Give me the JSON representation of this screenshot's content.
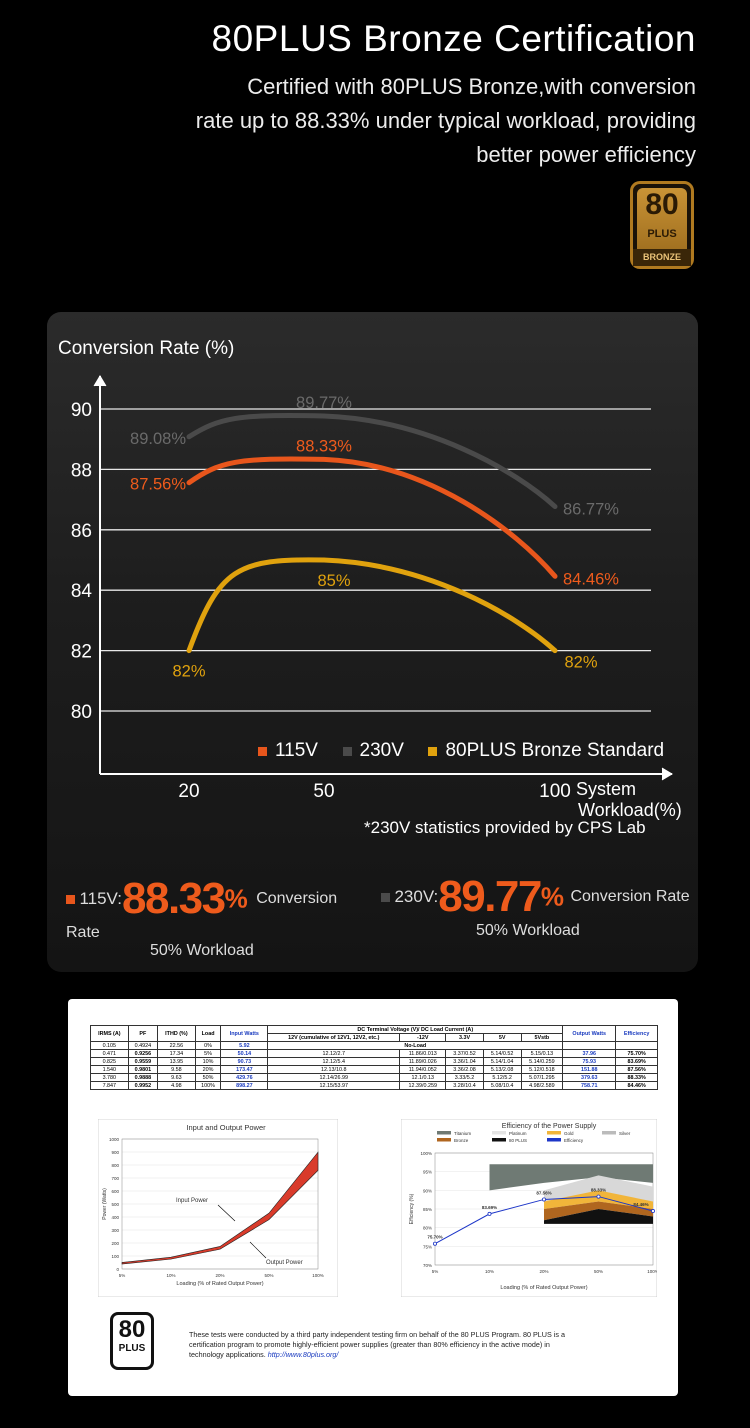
{
  "header": {
    "title": "80PLUS Bronze Certification",
    "subtitle_lines": [
      "Certified with 80PLUS Bronze,with conversion",
      "rate up to 88.33% under typical workload, providing",
      "better power efficiency"
    ],
    "badge": {
      "number": "80",
      "plus": "PLUS",
      "tier": "BRONZE"
    }
  },
  "chart_data": {
    "type": "line",
    "ylabel": "Conversion Rate (%)",
    "xlabel": "System Workload(%)",
    "xlabel_lines": [
      "System",
      "Workload(%)"
    ],
    "x": [
      20,
      50,
      100
    ],
    "xticks": [
      "20",
      "50",
      "100"
    ],
    "ylim": [
      78,
      91
    ],
    "yticks": [
      "90",
      "88",
      "86",
      "84",
      "82",
      "80"
    ],
    "grid": true,
    "legend_position": "bottom-right",
    "series": [
      {
        "name": "115V",
        "color": "#e8561c",
        "values": [
          87.56,
          88.33,
          84.46
        ],
        "labels": [
          "87.56%",
          "88.33%",
          "84.46%"
        ]
      },
      {
        "name": "230V",
        "color": "#4a4a4a",
        "values": [
          89.08,
          89.77,
          86.77
        ],
        "labels": [
          "89.08%",
          "89.77%",
          "86.77%"
        ]
      },
      {
        "name": "80PLUS Bronze Standard",
        "color": "#e0a20e",
        "values": [
          82,
          85,
          82
        ],
        "labels": [
          "82%",
          "85%",
          "82%"
        ]
      }
    ],
    "note": "*230V statistics provided by CPS Lab"
  },
  "summary": {
    "items": [
      {
        "voltage": "115V:",
        "rate": "88.33",
        "pct": "%",
        "suffix": "Conversion Rate",
        "workload": "50% Workload",
        "color": "#e8561c"
      },
      {
        "voltage": "230V:",
        "rate": "89.77",
        "pct": "%",
        "suffix": "Conversion Rate",
        "workload": "50% Workload",
        "color": "#4a4a4a"
      }
    ]
  },
  "report": {
    "table": {
      "headers": [
        "IRMS (A)",
        "PF",
        "ITHD (%)",
        "Load",
        "Input Watts",
        "12V (cumulative of 12V1, 12V2, etc.)",
        "-12V",
        "3.3V",
        "5V",
        "5Vstb",
        "Output Watts",
        "Efficiency"
      ],
      "group_header": "DC Terminal Voltage (V)/ DC Load Current (A)",
      "rows": [
        [
          "0.105",
          "0.4924",
          "22.56",
          "0%",
          "5.92",
          "No-Load",
          "",
          "",
          "",
          "",
          "",
          ""
        ],
        [
          "0.471",
          "0.9256",
          "17.34",
          "5%",
          "50.14",
          "12.12/2.7",
          "11.86/0.013",
          "3.37/0.52",
          "5.14/0.52",
          "5.15/0.13",
          "37.96",
          "75.70%"
        ],
        [
          "0.825",
          "0.9559",
          "13.95",
          "10%",
          "90.73",
          "12.12/5.4",
          "11.89/0.026",
          "3.36/1.04",
          "5.14/1.04",
          "5.14/0.259",
          "75.93",
          "83.69%"
        ],
        [
          "1.540",
          "0.9801",
          "9.58",
          "20%",
          "173.47",
          "12.13/10.8",
          "11.94/0.052",
          "3.36/2.08",
          "5.13/2.08",
          "5.12/0.518",
          "151.88",
          "87.56%"
        ],
        [
          "3.780",
          "0.9888",
          "9.63",
          "50%",
          "429.76",
          "12.14/26.99",
          "12.1/0.13",
          "3.33/5.2",
          "5.12/5.2",
          "5.07/1.295",
          "379.63",
          "88.33%"
        ],
        [
          "7.847",
          "0.9952",
          "4.98",
          "100%",
          "898.27",
          "12.15/53.97",
          "12.39/0.259",
          "3.28/10.4",
          "5.08/10.4",
          "4.98/2.589",
          "758.71",
          "84.46%"
        ]
      ]
    },
    "left_chart": {
      "title": "Input and Output Power",
      "ylabel": "Power (Watts)",
      "xlabel": "Loading (% of Rated Output Power)",
      "xticks": [
        "5%",
        "10%",
        "20%",
        "50%",
        "100%"
      ],
      "yticks": [
        "0",
        "100",
        "200",
        "300",
        "400",
        "500",
        "600",
        "700",
        "800",
        "900",
        "1000"
      ],
      "input_label": "Input Power",
      "output_label": "Output Power",
      "input": [
        50.14,
        90.73,
        173.47,
        429.76,
        898.27
      ],
      "output": [
        37.96,
        75.93,
        151.88,
        379.63,
        758.71
      ]
    },
    "right_chart": {
      "title": "Efficiency of the Power Supply",
      "ylabel": "Efficiency (%)",
      "xlabel": "Loading (% of Rated Output Power)",
      "xticks": [
        "5%",
        "10%",
        "20%",
        "50%",
        "100%"
      ],
      "yticks": [
        "100%",
        "95%",
        "90%",
        "85%",
        "80%",
        "75%",
        "70%"
      ],
      "legend": [
        "Titanium",
        "Platinum",
        "Gold",
        "Silver",
        "Bronze",
        "80 PLUS",
        "Efficiency"
      ],
      "values": [
        75.7,
        83.69,
        87.56,
        88.33,
        84.46
      ],
      "labels": [
        "75.70%",
        "83.69%",
        "87.56%",
        "88.33%",
        "84.46%"
      ]
    },
    "logo": {
      "number": "80",
      "plus": "PLUS"
    },
    "footer_text": "These tests were conducted by a third party independent testing firm on behalf of the 80 PLUS Program. 80 PLUS is a certification program to promote highly-efficient power supplies (greater than 80% efficiency in the active mode) in technology applications.",
    "footer_link": "http://www.80plus.org/"
  }
}
